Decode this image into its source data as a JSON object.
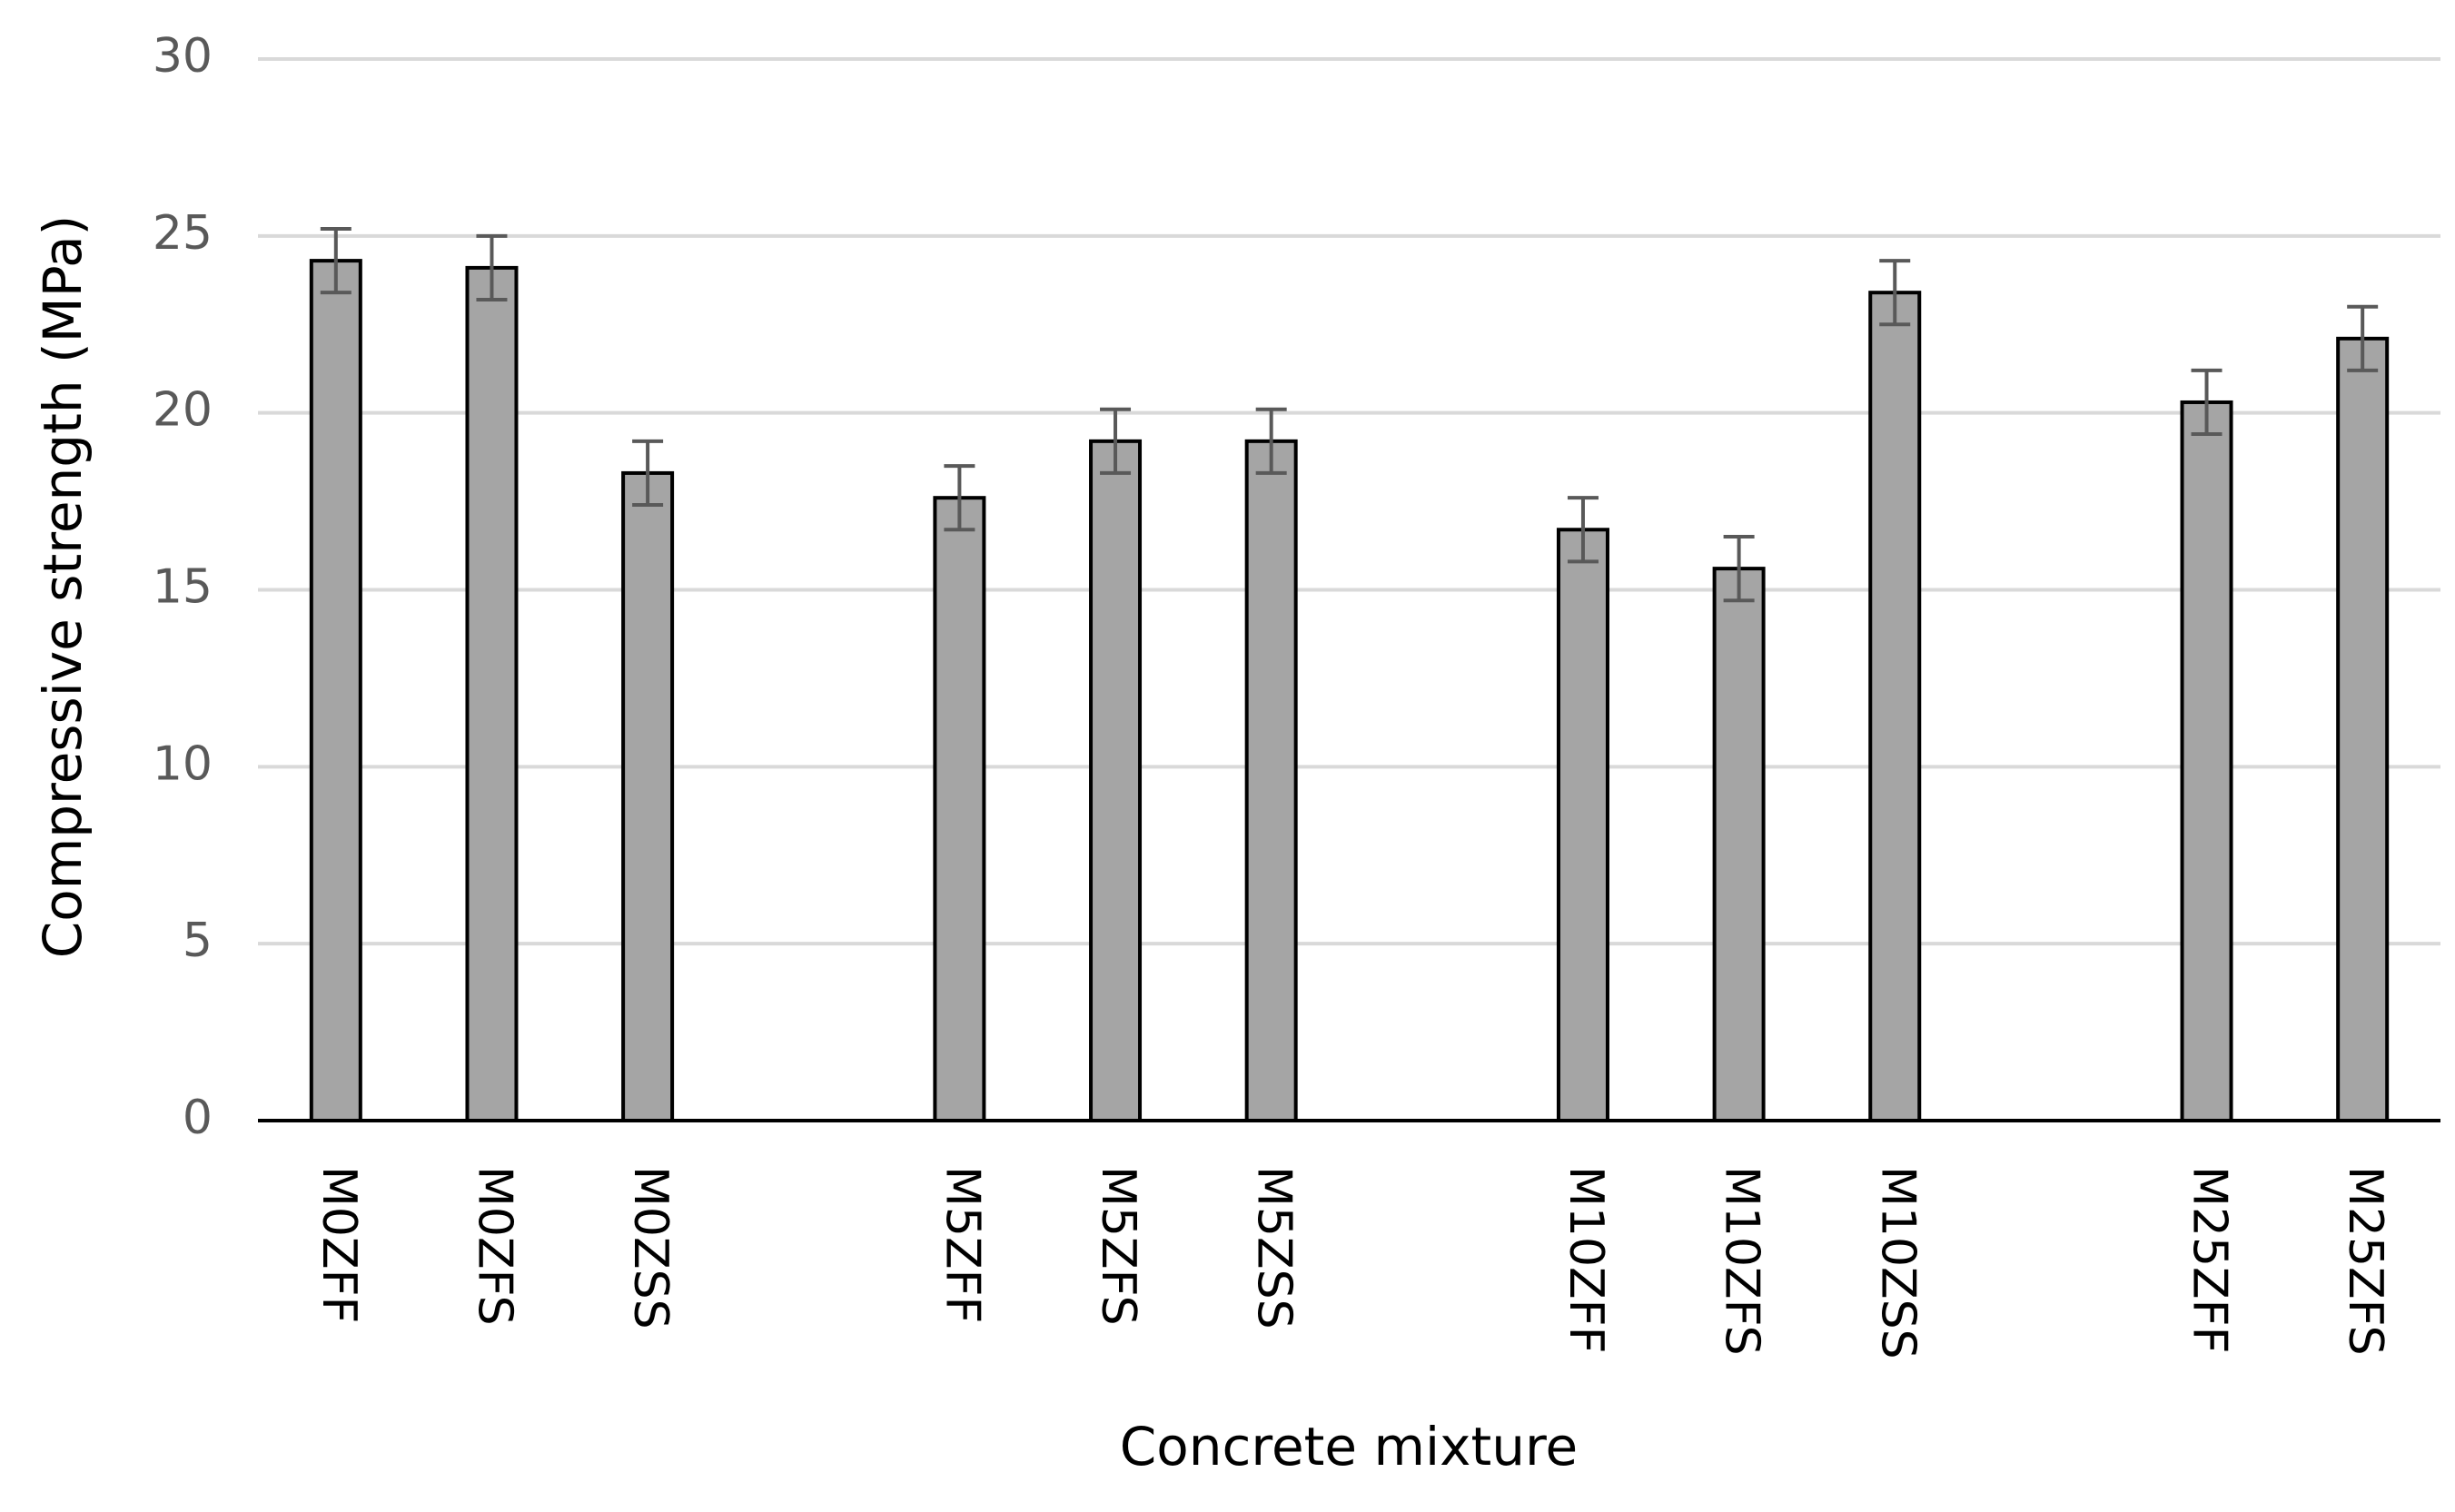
{
  "chart_data": {
    "type": "bar",
    "x_label": "Concrete mixture",
    "y_label": "Compressive strength (MPa)",
    "categories": [
      "M0ZFF",
      "M0ZFS",
      "M0ZSS",
      null,
      "M5ZFF",
      "M5ZFS",
      "M5ZSS",
      null,
      "M10ZFF",
      "M10ZFS",
      "M10ZSS",
      null,
      "M25ZFF",
      "M25ZFS"
    ],
    "values": [
      24.3,
      24.1,
      18.3,
      null,
      17.6,
      19.2,
      19.2,
      null,
      16.7,
      15.6,
      23.4,
      null,
      20.3,
      22.1
    ],
    "errors": [
      0.9,
      0.9,
      0.9,
      null,
      0.9,
      0.9,
      0.9,
      null,
      0.9,
      0.9,
      0.9,
      null,
      0.9,
      0.9
    ],
    "color": "#a5a5a5",
    "ylim": [
      0,
      30
    ],
    "yticks": [
      0,
      5,
      10,
      15,
      20,
      25,
      30
    ],
    "grid": true
  }
}
